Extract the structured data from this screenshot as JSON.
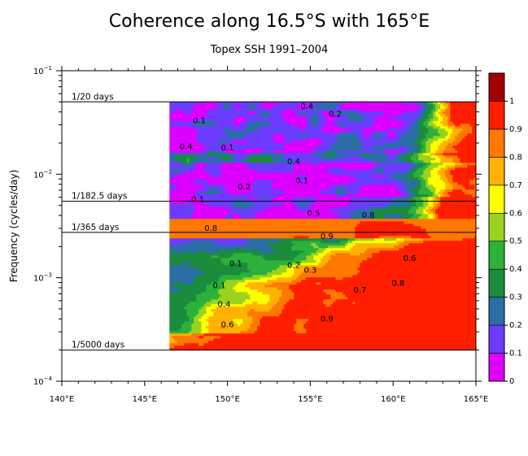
{
  "chart_data": {
    "type": "heatmap",
    "title": "Coherence along 16.5°S with 165°E",
    "subtitle": "Topex SSH 1991–2004",
    "ylabel": "Frequency (cycles/day)",
    "xlabel": "",
    "x_ticks": [
      "140°E",
      "145°E",
      "150°E",
      "155°E",
      "160°E",
      "165°E"
    ],
    "x_values": [
      140,
      145,
      150,
      155,
      160,
      165
    ],
    "xlim": [
      140,
      165
    ],
    "y_scale": "log",
    "ylim": [
      0.0001,
      0.1
    ],
    "y_ticks": [
      {
        "value": 0.1,
        "base": "10",
        "exp": "−1"
      },
      {
        "value": 0.01,
        "base": "10",
        "exp": "−2"
      },
      {
        "value": 0.001,
        "base": "10",
        "exp": "−3"
      },
      {
        "value": 0.0001,
        "base": "10",
        "exp": "−4"
      }
    ],
    "reference_lines": [
      {
        "label": "1/20 days",
        "frequency": 0.05
      },
      {
        "label": "1/182.5 days",
        "frequency": 0.00548
      },
      {
        "label": "1/365 days",
        "frequency": 0.00274
      },
      {
        "label": "1/5000 days",
        "frequency": 0.0002
      }
    ],
    "data_extent": {
      "x_start": 146.5,
      "x_end": 165,
      "f_min": 0.0002,
      "f_max": 0.05
    },
    "colorbar": {
      "levels": [
        "0",
        "0.1",
        "0.2",
        "0.3",
        "0.4",
        "0.5",
        "0.6",
        "0.7",
        "0.8",
        "0.9",
        "1"
      ],
      "colors": [
        "#dd00ff",
        "#6b3cff",
        "#2a6ea6",
        "#1b8c3c",
        "#2cb13a",
        "#9ad21e",
        "#ffff00",
        "#ffb300",
        "#ff7800",
        "#ff1e00",
        "#a00000"
      ]
    },
    "contour_labels": [
      {
        "text": "0.1",
        "x": 148.3,
        "f": 0.033
      },
      {
        "text": "0.2",
        "x": 156.5,
        "f": 0.038
      },
      {
        "text": "0.4",
        "x": 154.8,
        "f": 0.045
      },
      {
        "text": "0.1",
        "x": 150.0,
        "f": 0.018
      },
      {
        "text": "0.4",
        "x": 147.5,
        "f": 0.0185
      },
      {
        "text": "0.4",
        "x": 154.0,
        "f": 0.0132
      },
      {
        "text": "0.1",
        "x": 154.5,
        "f": 0.0086
      },
      {
        "text": "0.2",
        "x": 151.0,
        "f": 0.0075
      },
      {
        "text": "0.1",
        "x": 148.2,
        "f": 0.0057
      },
      {
        "text": "0.5",
        "x": 155.2,
        "f": 0.0042
      },
      {
        "text": "0.8",
        "x": 158.5,
        "f": 0.004
      },
      {
        "text": "0.8",
        "x": 149.0,
        "f": 0.003
      },
      {
        "text": "0.9",
        "x": 156.0,
        "f": 0.0025
      },
      {
        "text": "0.1",
        "x": 150.5,
        "f": 0.00136
      },
      {
        "text": "0.2",
        "x": 154.0,
        "f": 0.00132
      },
      {
        "text": "0.3",
        "x": 155.0,
        "f": 0.00118
      },
      {
        "text": "0.6",
        "x": 161.0,
        "f": 0.00153
      },
      {
        "text": "0.1",
        "x": 149.5,
        "f": 0.00084
      },
      {
        "text": "0.4",
        "x": 149.8,
        "f": 0.00055
      },
      {
        "text": "0.7",
        "x": 158.0,
        "f": 0.00076
      },
      {
        "text": "0.8",
        "x": 160.3,
        "f": 0.00088
      },
      {
        "text": "0.6",
        "x": 150.0,
        "f": 0.00035
      },
      {
        "text": "0.9",
        "x": 156.0,
        "f": 0.0004
      }
    ]
  }
}
